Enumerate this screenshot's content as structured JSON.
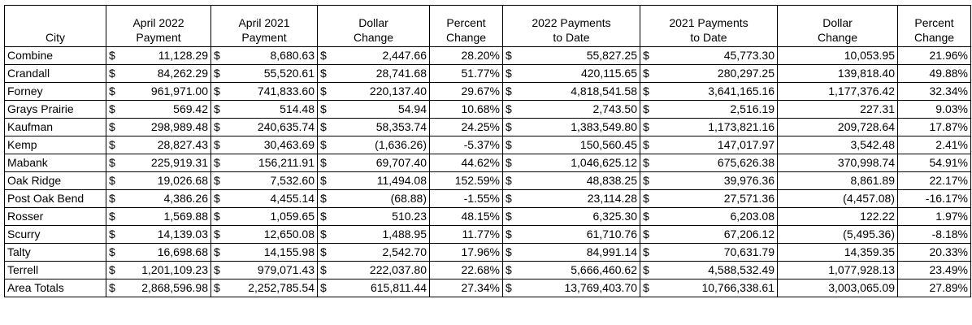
{
  "headers": {
    "city": [
      "",
      "City"
    ],
    "apr2022": [
      "April 2022",
      "Payment"
    ],
    "apr2021": [
      "April 2021",
      "Payment"
    ],
    "dollar1": [
      "Dollar",
      "Change"
    ],
    "pct1": [
      "Percent",
      "Change"
    ],
    "pay2022": [
      "2022 Payments",
      "to Date"
    ],
    "pay2021": [
      "2021 Payments",
      "to Date"
    ],
    "dollar2": [
      "Dollar",
      "Change"
    ],
    "pct2": [
      "Percent",
      "Change"
    ]
  },
  "currency": "$",
  "rows": [
    {
      "city": "Combine",
      "apr2022": "11,128.29",
      "apr2021": "8,680.63",
      "dollar": "2,447.66",
      "pct": "28.20%",
      "ytd2022": "55,827.25",
      "ytd2021": "45,773.30",
      "dollar2": "10,053.95",
      "pct2": "21.96%"
    },
    {
      "city": "Crandall",
      "apr2022": "84,262.29",
      "apr2021": "55,520.61",
      "dollar": "28,741.68",
      "pct": "51.77%",
      "ytd2022": "420,115.65",
      "ytd2021": "280,297.25",
      "dollar2": "139,818.40",
      "pct2": "49.88%"
    },
    {
      "city": "Forney",
      "apr2022": "961,971.00",
      "apr2021": "741,833.60",
      "dollar": "220,137.40",
      "pct": "29.67%",
      "ytd2022": "4,818,541.58",
      "ytd2021": "3,641,165.16",
      "dollar2": "1,177,376.42",
      "pct2": "32.34%"
    },
    {
      "city": "Grays Prairie",
      "apr2022": "569.42",
      "apr2021": "514.48",
      "dollar": "54.94",
      "pct": "10.68%",
      "ytd2022": "2,743.50",
      "ytd2021": "2,516.19",
      "dollar2": "227.31",
      "pct2": "9.03%"
    },
    {
      "city": "Kaufman",
      "apr2022": "298,989.48",
      "apr2021": "240,635.74",
      "dollar": "58,353.74",
      "pct": "24.25%",
      "ytd2022": "1,383,549.80",
      "ytd2021": "1,173,821.16",
      "dollar2": "209,728.64",
      "pct2": "17.87%"
    },
    {
      "city": "Kemp",
      "apr2022": "28,827.43",
      "apr2021": "30,463.69",
      "dollar": "(1,636.26)",
      "pct": "-5.37%",
      "ytd2022": "150,560.45",
      "ytd2021": "147,017.97",
      "dollar2": "3,542.48",
      "pct2": "2.41%"
    },
    {
      "city": "Mabank",
      "apr2022": "225,919.31",
      "apr2021": "156,211.91",
      "dollar": "69,707.40",
      "pct": "44.62%",
      "ytd2022": "1,046,625.12",
      "ytd2021": "675,626.38",
      "dollar2": "370,998.74",
      "pct2": "54.91%"
    },
    {
      "city": "Oak Ridge",
      "apr2022": "19,026.68",
      "apr2021": "7,532.60",
      "dollar": "11,494.08",
      "pct": "152.59%",
      "ytd2022": "48,838.25",
      "ytd2021": "39,976.36",
      "dollar2": "8,861.89",
      "pct2": "22.17%"
    },
    {
      "city": "Post Oak Bend",
      "apr2022": "4,386.26",
      "apr2021": "4,455.14",
      "dollar": "(68.88)",
      "pct": "-1.55%",
      "ytd2022": "23,114.28",
      "ytd2021": "27,571.36",
      "dollar2": "(4,457.08)",
      "pct2": "-16.17%"
    },
    {
      "city": "Rosser",
      "apr2022": "1,569.88",
      "apr2021": "1,059.65",
      "dollar": "510.23",
      "pct": "48.15%",
      "ytd2022": "6,325.30",
      "ytd2021": "6,203.08",
      "dollar2": "122.22",
      "pct2": "1.97%"
    },
    {
      "city": "Scurry",
      "apr2022": "14,139.03",
      "apr2021": "12,650.08",
      "dollar": "1,488.95",
      "pct": "11.77%",
      "ytd2022": "61,710.76",
      "ytd2021": "67,206.12",
      "dollar2": "(5,495.36)",
      "pct2": "-8.18%"
    },
    {
      "city": "Talty",
      "apr2022": "16,698.68",
      "apr2021": "14,155.98",
      "dollar": "2,542.70",
      "pct": "17.96%",
      "ytd2022": "84,991.14",
      "ytd2021": "70,631.79",
      "dollar2": "14,359.35",
      "pct2": "20.33%"
    },
    {
      "city": "Terrell",
      "apr2022": "1,201,109.23",
      "apr2021": "979,071.43",
      "dollar": "222,037.80",
      "pct": "22.68%",
      "ytd2022": "5,666,460.62",
      "ytd2021": "4,588,532.49",
      "dollar2": "1,077,928.13",
      "pct2": "23.49%"
    },
    {
      "city": "Area Totals",
      "apr2022": "2,868,596.98",
      "apr2021": "2,252,785.54",
      "dollar": "615,811.44",
      "pct": "27.34%",
      "ytd2022": "13,769,403.70",
      "ytd2021": "10,766,338.61",
      "dollar2": "3,003,065.09",
      "pct2": "27.89%"
    }
  ]
}
